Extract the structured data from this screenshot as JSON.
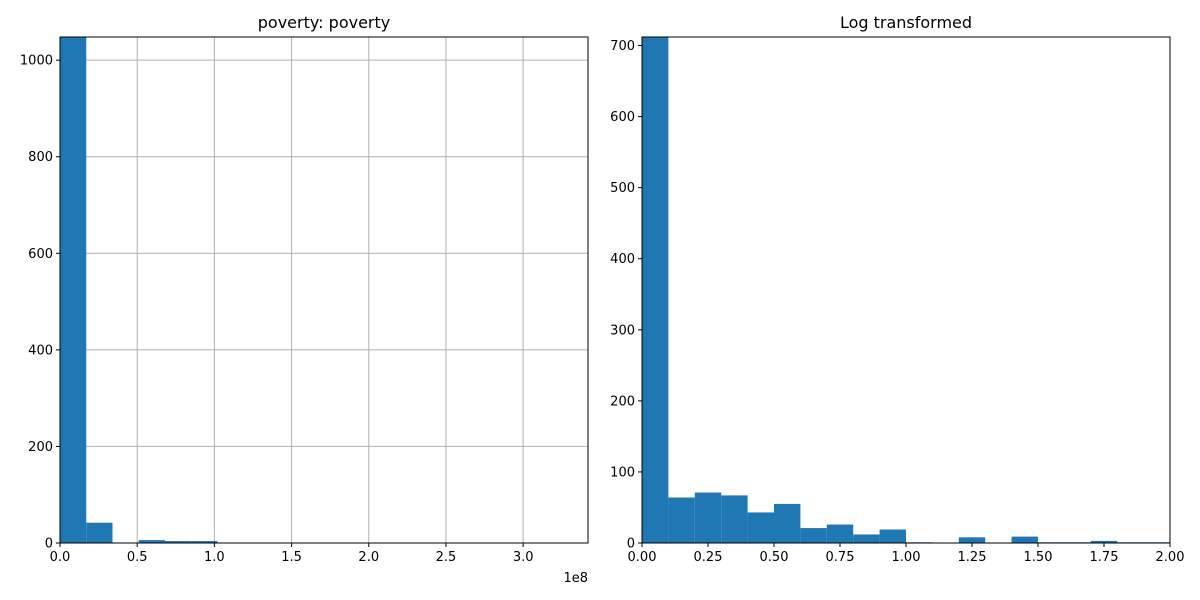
{
  "chart_data": [
    {
      "type": "bar",
      "title": "poverty: poverty",
      "xlabel": "",
      "ylabel": "",
      "x_offset_label": "1e8",
      "grid": true,
      "xlim": [
        0,
        3.42
      ],
      "ylim": [
        0,
        1048
      ],
      "x_ticks": [
        {
          "value": 0,
          "label": "0.0"
        },
        {
          "value": 0.5,
          "label": "0.5"
        },
        {
          "value": 1.0,
          "label": "1.0"
        },
        {
          "value": 1.5,
          "label": "1.5"
        },
        {
          "value": 2.0,
          "label": "2.0"
        },
        {
          "value": 2.5,
          "label": "2.5"
        },
        {
          "value": 3.0,
          "label": "3.0"
        }
      ],
      "y_ticks": [
        {
          "value": 0,
          "label": "0"
        },
        {
          "value": 200,
          "label": "200"
        },
        {
          "value": 400,
          "label": "400"
        },
        {
          "value": 600,
          "label": "600"
        },
        {
          "value": 800,
          "label": "800"
        },
        {
          "value": 1000,
          "label": "1000"
        }
      ],
      "bins": [
        {
          "x0": 0.0,
          "x1": 0.17,
          "count": 1048
        },
        {
          "x0": 0.17,
          "x1": 0.34,
          "count": 42
        },
        {
          "x0": 0.51,
          "x1": 0.68,
          "count": 6
        },
        {
          "x0": 0.68,
          "x1": 0.85,
          "count": 4
        },
        {
          "x0": 0.85,
          "x1": 1.02,
          "count": 4
        },
        {
          "x0": 1.7,
          "x1": 1.87,
          "count": 1
        }
      ],
      "color": "#1f77b4"
    },
    {
      "type": "bar",
      "title": "Log transformed",
      "xlabel": "",
      "ylabel": "",
      "grid": false,
      "xlim": [
        0,
        2.0
      ],
      "ylim": [
        0,
        712
      ],
      "x_ticks": [
        {
          "value": 0,
          "label": "0.00"
        },
        {
          "value": 0.25,
          "label": "0.25"
        },
        {
          "value": 0.5,
          "label": "0.50"
        },
        {
          "value": 0.75,
          "label": "0.75"
        },
        {
          "value": 1.0,
          "label": "1.00"
        },
        {
          "value": 1.25,
          "label": "1.25"
        },
        {
          "value": 1.5,
          "label": "1.50"
        },
        {
          "value": 1.75,
          "label": "1.75"
        },
        {
          "value": 2.0,
          "label": "2.00"
        }
      ],
      "y_ticks": [
        {
          "value": 0,
          "label": "0"
        },
        {
          "value": 100,
          "label": "100"
        },
        {
          "value": 200,
          "label": "200"
        },
        {
          "value": 300,
          "label": "300"
        },
        {
          "value": 400,
          "label": "400"
        },
        {
          "value": 500,
          "label": "500"
        },
        {
          "value": 600,
          "label": "600"
        },
        {
          "value": 700,
          "label": "700"
        }
      ],
      "bins": [
        {
          "x0": 0.0,
          "x1": 0.1,
          "count": 712
        },
        {
          "x0": 0.1,
          "x1": 0.2,
          "count": 64
        },
        {
          "x0": 0.2,
          "x1": 0.3,
          "count": 71
        },
        {
          "x0": 0.3,
          "x1": 0.4,
          "count": 67
        },
        {
          "x0": 0.4,
          "x1": 0.5,
          "count": 43
        },
        {
          "x0": 0.5,
          "x1": 0.6,
          "count": 55
        },
        {
          "x0": 0.6,
          "x1": 0.7,
          "count": 21
        },
        {
          "x0": 0.7,
          "x1": 0.8,
          "count": 26
        },
        {
          "x0": 0.8,
          "x1": 0.9,
          "count": 12
        },
        {
          "x0": 0.9,
          "x1": 1.0,
          "count": 19
        },
        {
          "x0": 1.0,
          "x1": 1.1,
          "count": 1
        },
        {
          "x0": 1.2,
          "x1": 1.3,
          "count": 8
        },
        {
          "x0": 1.4,
          "x1": 1.5,
          "count": 9
        },
        {
          "x0": 1.5,
          "x1": 1.6,
          "count": 1
        },
        {
          "x0": 1.6,
          "x1": 1.7,
          "count": 1
        },
        {
          "x0": 1.7,
          "x1": 1.8,
          "count": 3
        },
        {
          "x0": 1.8,
          "x1": 1.9,
          "count": 1
        },
        {
          "x0": 1.9,
          "x1": 2.0,
          "count": 1
        }
      ],
      "color": "#1f77b4"
    }
  ]
}
